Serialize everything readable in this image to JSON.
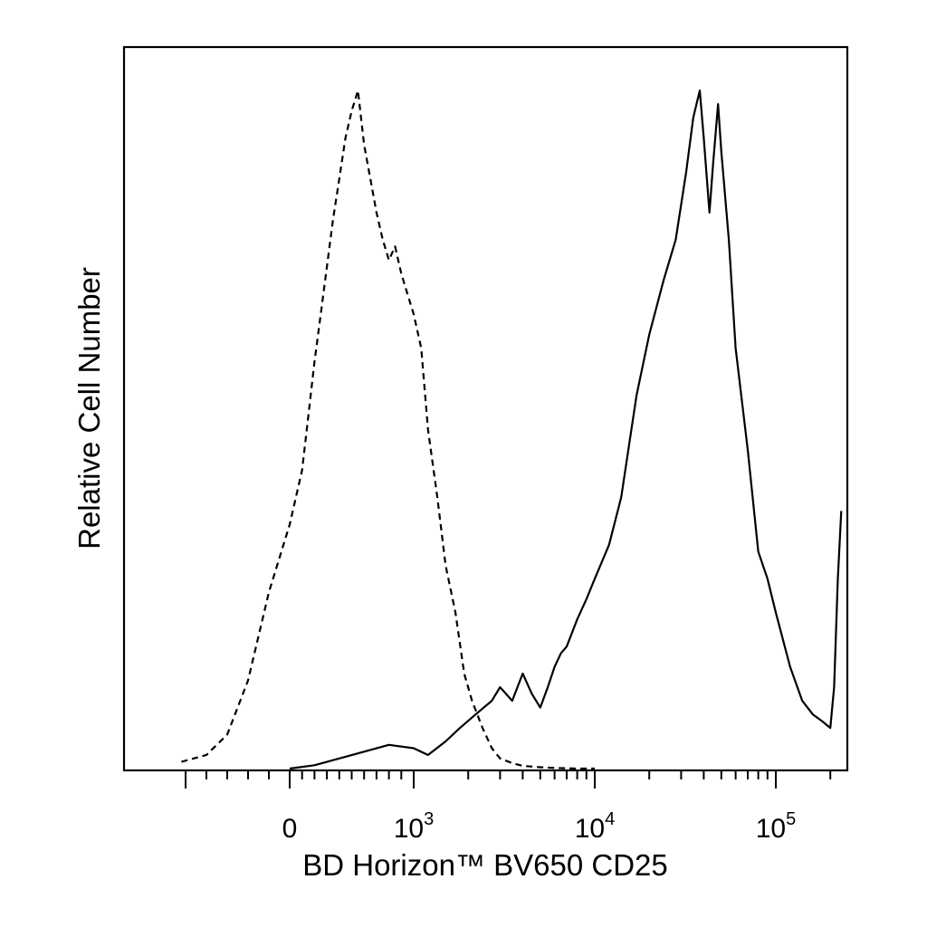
{
  "chart_data": {
    "type": "line",
    "title": "",
    "xlabel": "BD Horizon™ BV650 CD25",
    "ylabel": "Relative Cell Number",
    "x_scale": "biexponential",
    "xlim": [
      -600,
      250000
    ],
    "ylim": [
      0,
      100
    ],
    "grid": false,
    "legend": "none",
    "x_tick_labels": [
      {
        "value": 0,
        "base": "0",
        "exp": ""
      },
      {
        "value": 1000,
        "base": "10",
        "exp": "3"
      },
      {
        "value": 10000,
        "base": "10",
        "exp": "4"
      },
      {
        "value": 100000,
        "base": "10",
        "exp": "5"
      }
    ],
    "series": [
      {
        "style": "dashed",
        "color": "#000000",
        "x": [
          -520,
          -400,
          -300,
          -200,
          -100,
          0,
          100,
          150,
          200,
          250,
          300,
          350,
          400,
          450,
          500,
          550,
          600,
          650,
          700,
          750,
          800,
          850,
          900,
          950,
          1000,
          1100,
          1200,
          1350,
          1500,
          1700,
          1900,
          2100,
          2400,
          2700,
          3000,
          3500,
          4000,
          5000,
          6000,
          8000,
          10000
        ],
        "y": [
          1,
          2,
          5,
          13,
          26,
          36,
          44,
          52,
          60,
          67,
          74,
          81,
          87,
          93,
          97,
          100,
          92,
          87,
          82,
          78,
          75,
          77,
          73,
          70,
          67,
          62,
          50,
          40,
          30,
          23,
          14,
          10,
          6,
          3,
          1.5,
          0.8,
          0.4,
          0.2,
          0.1,
          0,
          0
        ]
      },
      {
        "style": "solid",
        "color": "#000000",
        "x": [
          0,
          200,
          400,
          600,
          800,
          1000,
          1200,
          1500,
          1800,
          2200,
          2700,
          3000,
          3500,
          4000,
          4500,
          5000,
          5500,
          6000,
          6500,
          7000,
          8000,
          9000,
          10000,
          12000,
          14000,
          17000,
          20000,
          24000,
          28000,
          32000,
          35000,
          38000,
          40000,
          43000,
          45000,
          48000,
          50000,
          55000,
          60000,
          70000,
          80000,
          90000,
          100000,
          120000,
          140000,
          160000,
          180000,
          200000,
          210000,
          220000,
          230000
        ],
        "y": [
          0,
          0.5,
          1.5,
          2.5,
          3.5,
          3,
          2,
          4,
          6,
          8,
          10,
          12,
          10,
          14,
          11,
          9,
          12,
          15,
          17,
          18,
          22,
          25,
          28,
          33,
          40,
          55,
          64,
          72,
          78,
          88,
          96,
          100,
          93,
          82,
          89,
          98,
          91,
          78,
          62,
          47,
          32,
          28,
          23,
          15,
          10,
          8,
          7,
          6,
          12,
          28,
          38
        ]
      }
    ]
  }
}
